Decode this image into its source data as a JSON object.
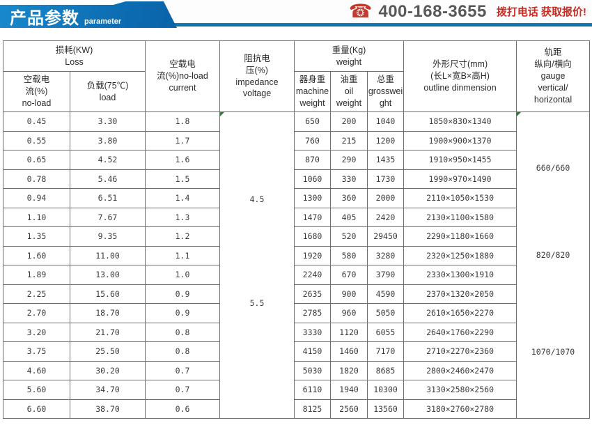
{
  "banner": {
    "title": "产品参数",
    "subtitle": "parameter",
    "phone_icon": "☎",
    "phone_number": "400-168-3655",
    "cta": "拨打电话 获取报价!"
  },
  "colors": {
    "banner_blue": "#0e71b6",
    "rule_blue": "#1073b4",
    "cta_red": "#cd2a21",
    "phone_red": "#c23b2e",
    "phone_gray": "#57585a",
    "table_border": "#6e6e6e",
    "flag_green": "#2e7d32"
  },
  "table": {
    "headers": {
      "loss_group": "损耗(KW)\nLoss",
      "no_load_loss": "空载电\n流(%)\nno-load",
      "load_loss": "负载(75℃)\nload",
      "no_load_current": "空载电\n流(%)no-load\ncurrent",
      "impedance": "阻抗电\n压(%)\nimpedance\nvoltage",
      "weight_group": "重量(Kg)\nweight",
      "machine_weight": "器身重\nmachine\nweight",
      "oil_weight": "油重\noil\nweight",
      "gross_weight": "总重\ngrosswei\nght",
      "dimensions": "外形尺寸(mm)\n(长L×宽B×高H)\noutline dinmension",
      "gauge": "轨距\n纵向/横向\ngauge\nvertical/\nhorizontal"
    },
    "rows": [
      [
        "0.45",
        "3.30",
        "1.8",
        "650",
        "200",
        "1040",
        "1850×830×1340"
      ],
      [
        "0.55",
        "3.80",
        "1.7",
        "760",
        "215",
        "1200",
        "1900×900×1370"
      ],
      [
        "0.65",
        "4.52",
        "1.6",
        "870",
        "290",
        "1435",
        "1910×950×1455"
      ],
      [
        "0.78",
        "5.46",
        "1.5",
        "1060",
        "330",
        "1730",
        "1990×970×1490"
      ],
      [
        "0.94",
        "6.51",
        "1.4",
        "1300",
        "360",
        "2000",
        "2110×1050×1530"
      ],
      [
        "1.10",
        "7.67",
        "1.3",
        "1470",
        "405",
        "2420",
        "2130×1100×1580"
      ],
      [
        "1.35",
        "9.35",
        "1.2",
        "1680",
        "520",
        "29450",
        "2290×1180×1660"
      ],
      [
        "1.60",
        "11.00",
        "1.1",
        "1920",
        "580",
        "3280",
        "2320×1250×1880"
      ],
      [
        "1.89",
        "13.00",
        "1.0",
        "2240",
        "670",
        "3790",
        "2330×1300×1910"
      ],
      [
        "2.25",
        "15.60",
        "0.9",
        "2635",
        "900",
        "4590",
        "2370×1320×2050"
      ],
      [
        "2.70",
        "18.70",
        "0.9",
        "2785",
        "960",
        "5050",
        "2610×1650×2270"
      ],
      [
        "3.20",
        "21.70",
        "0.8",
        "3330",
        "1120",
        "6055",
        "2640×1760×2290"
      ],
      [
        "3.75",
        "25.50",
        "0.8",
        "4150",
        "1460",
        "7170",
        "2710×2270×2360"
      ],
      [
        "4.60",
        "30.20",
        "0.7",
        "5030",
        "1820",
        "8685",
        "2800×2460×2470"
      ],
      [
        "5.60",
        "34.70",
        "0.7",
        "6110",
        "1940",
        "10300",
        "3130×2580×2560"
      ],
      [
        "6.60",
        "38.70",
        "0.6",
        "8125",
        "2560",
        "13560",
        "3180×2760×2780"
      ]
    ],
    "impedance_values": [
      "4.5",
      "5.5"
    ],
    "gauge_values": [
      "660/660",
      "820/820",
      "1070/1070"
    ]
  }
}
